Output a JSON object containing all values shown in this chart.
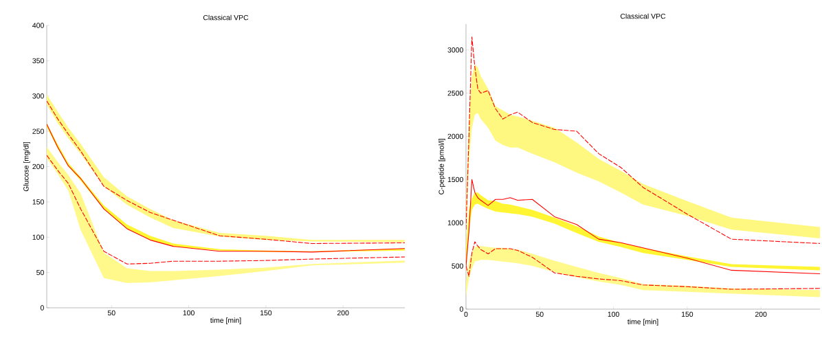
{
  "chart_data": [
    {
      "type": "line",
      "title": "Classical VPC",
      "xlabel": "time [min]",
      "ylabel": "Glucose [mg/dl]",
      "xlim": [
        8,
        240
      ],
      "ylim": [
        0,
        400
      ],
      "xticks": [
        50,
        100,
        150,
        200
      ],
      "yticks": [
        0,
        50,
        100,
        150,
        200,
        250,
        300,
        350,
        400
      ],
      "grid": false,
      "series": [
        {
          "color": "#ff0000",
          "line_style": "dashed",
          "x": [
            8,
            15,
            22,
            30,
            45,
            60,
            75,
            90,
            120,
            150,
            180,
            240
          ],
          "values": [
            293,
            268,
            246,
            222,
            172,
            152,
            135,
            124,
            102,
            97,
            91,
            92
          ],
          "lower": [
            288,
            262,
            240,
            218,
            172,
            146,
            128,
            113,
            101,
            96,
            94,
            93
          ],
          "upper": [
            302,
            278,
            255,
            232,
            185,
            158,
            140,
            124,
            106,
            102,
            96,
            96
          ]
        },
        {
          "color": "#ff0000",
          "line_style": "solid",
          "x": [
            8,
            15,
            22,
            30,
            45,
            60,
            75,
            90,
            120,
            150,
            180,
            240
          ],
          "values": [
            260,
            228,
            201,
            183,
            140,
            112,
            96,
            87,
            80,
            80,
            79,
            84
          ],
          "lower": [
            256,
            226,
            200,
            180,
            140,
            112,
            96,
            87,
            81,
            79,
            79,
            81
          ],
          "upper": [
            261,
            232,
            205,
            185,
            145,
            118,
            102,
            91,
            83,
            81,
            80,
            84
          ]
        },
        {
          "color": "#ff0000",
          "line_style": "dashed",
          "x": [
            8,
            15,
            22,
            30,
            45,
            60,
            75,
            90,
            120,
            150,
            180,
            240
          ],
          "values": [
            216,
            195,
            176,
            140,
            80,
            62,
            63,
            66,
            66,
            67,
            69,
            72
          ],
          "lower": [
            212,
            190,
            166,
            110,
            42,
            35,
            36,
            39,
            45,
            52,
            60,
            64
          ],
          "upper": [
            228,
            207,
            188,
            162,
            78,
            56,
            52,
            52,
            54,
            57,
            62,
            67
          ]
        }
      ]
    },
    {
      "type": "line",
      "title": "Classical VPC",
      "xlabel": "time [min]",
      "ylabel": "C-peptide [pmol/l]",
      "xlim": [
        0,
        240
      ],
      "ylim": [
        0,
        3300
      ],
      "xticks": [
        0,
        50,
        100,
        150,
        200
      ],
      "yticks": [
        0,
        500,
        1000,
        1500,
        2000,
        2500,
        3000
      ],
      "grid": false,
      "series": [
        {
          "color": "#ff0000",
          "line_style": "dashed",
          "x": [
            0,
            2,
            4,
            6,
            8,
            10,
            15,
            20,
            25,
            30,
            35,
            45,
            60,
            75,
            90,
            105,
            120,
            150,
            180,
            240
          ],
          "values": [
            920,
            2000,
            3150,
            2800,
            2550,
            2500,
            2530,
            2320,
            2200,
            2250,
            2280,
            2160,
            2080,
            2060,
            1800,
            1640,
            1410,
            1100,
            810,
            760
          ],
          "lower": [
            800,
            1700,
            2100,
            2250,
            2270,
            2200,
            2100,
            1950,
            1900,
            1870,
            1870,
            1800,
            1700,
            1580,
            1480,
            1350,
            1210,
            1080,
            920,
            820
          ],
          "upper": [
            1200,
            2200,
            2700,
            2830,
            2800,
            2700,
            2550,
            2350,
            2300,
            2250,
            2230,
            2180,
            2100,
            1930,
            1740,
            1600,
            1450,
            1250,
            1060,
            950
          ]
        },
        {
          "color": "#ff0000",
          "line_style": "solid",
          "x": [
            0,
            2,
            4,
            6,
            8,
            10,
            15,
            20,
            25,
            30,
            35,
            45,
            60,
            75,
            90,
            105,
            120,
            150,
            180,
            240
          ],
          "values": [
            500,
            900,
            1500,
            1350,
            1290,
            1260,
            1200,
            1270,
            1270,
            1290,
            1260,
            1270,
            1070,
            980,
            810,
            770,
            710,
            590,
            450,
            410
          ],
          "lower": [
            400,
            900,
            1150,
            1210,
            1220,
            1200,
            1160,
            1130,
            1120,
            1110,
            1100,
            1070,
            990,
            880,
            780,
            720,
            650,
            570,
            490,
            450
          ],
          "upper": [
            700,
            1150,
            1280,
            1350,
            1350,
            1320,
            1260,
            1250,
            1220,
            1210,
            1190,
            1150,
            1060,
            960,
            840,
            770,
            710,
            610,
            520,
            490
          ]
        },
        {
          "color": "#ff0000",
          "line_style": "dashed",
          "x": [
            0,
            2,
            4,
            6,
            8,
            10,
            15,
            20,
            25,
            30,
            35,
            45,
            60,
            75,
            90,
            105,
            120,
            150,
            180,
            240
          ],
          "values": [
            500,
            380,
            650,
            780,
            730,
            690,
            640,
            700,
            700,
            700,
            680,
            600,
            420,
            380,
            350,
            330,
            280,
            260,
            230,
            240
          ],
          "lower": [
            150,
            350,
            470,
            550,
            560,
            570,
            570,
            560,
            550,
            540,
            530,
            500,
            430,
            370,
            320,
            280,
            220,
            200,
            180,
            140
          ],
          "upper": [
            300,
            550,
            650,
            720,
            730,
            730,
            720,
            710,
            710,
            700,
            690,
            640,
            560,
            490,
            420,
            360,
            290,
            270,
            240,
            220
          ]
        }
      ]
    }
  ]
}
